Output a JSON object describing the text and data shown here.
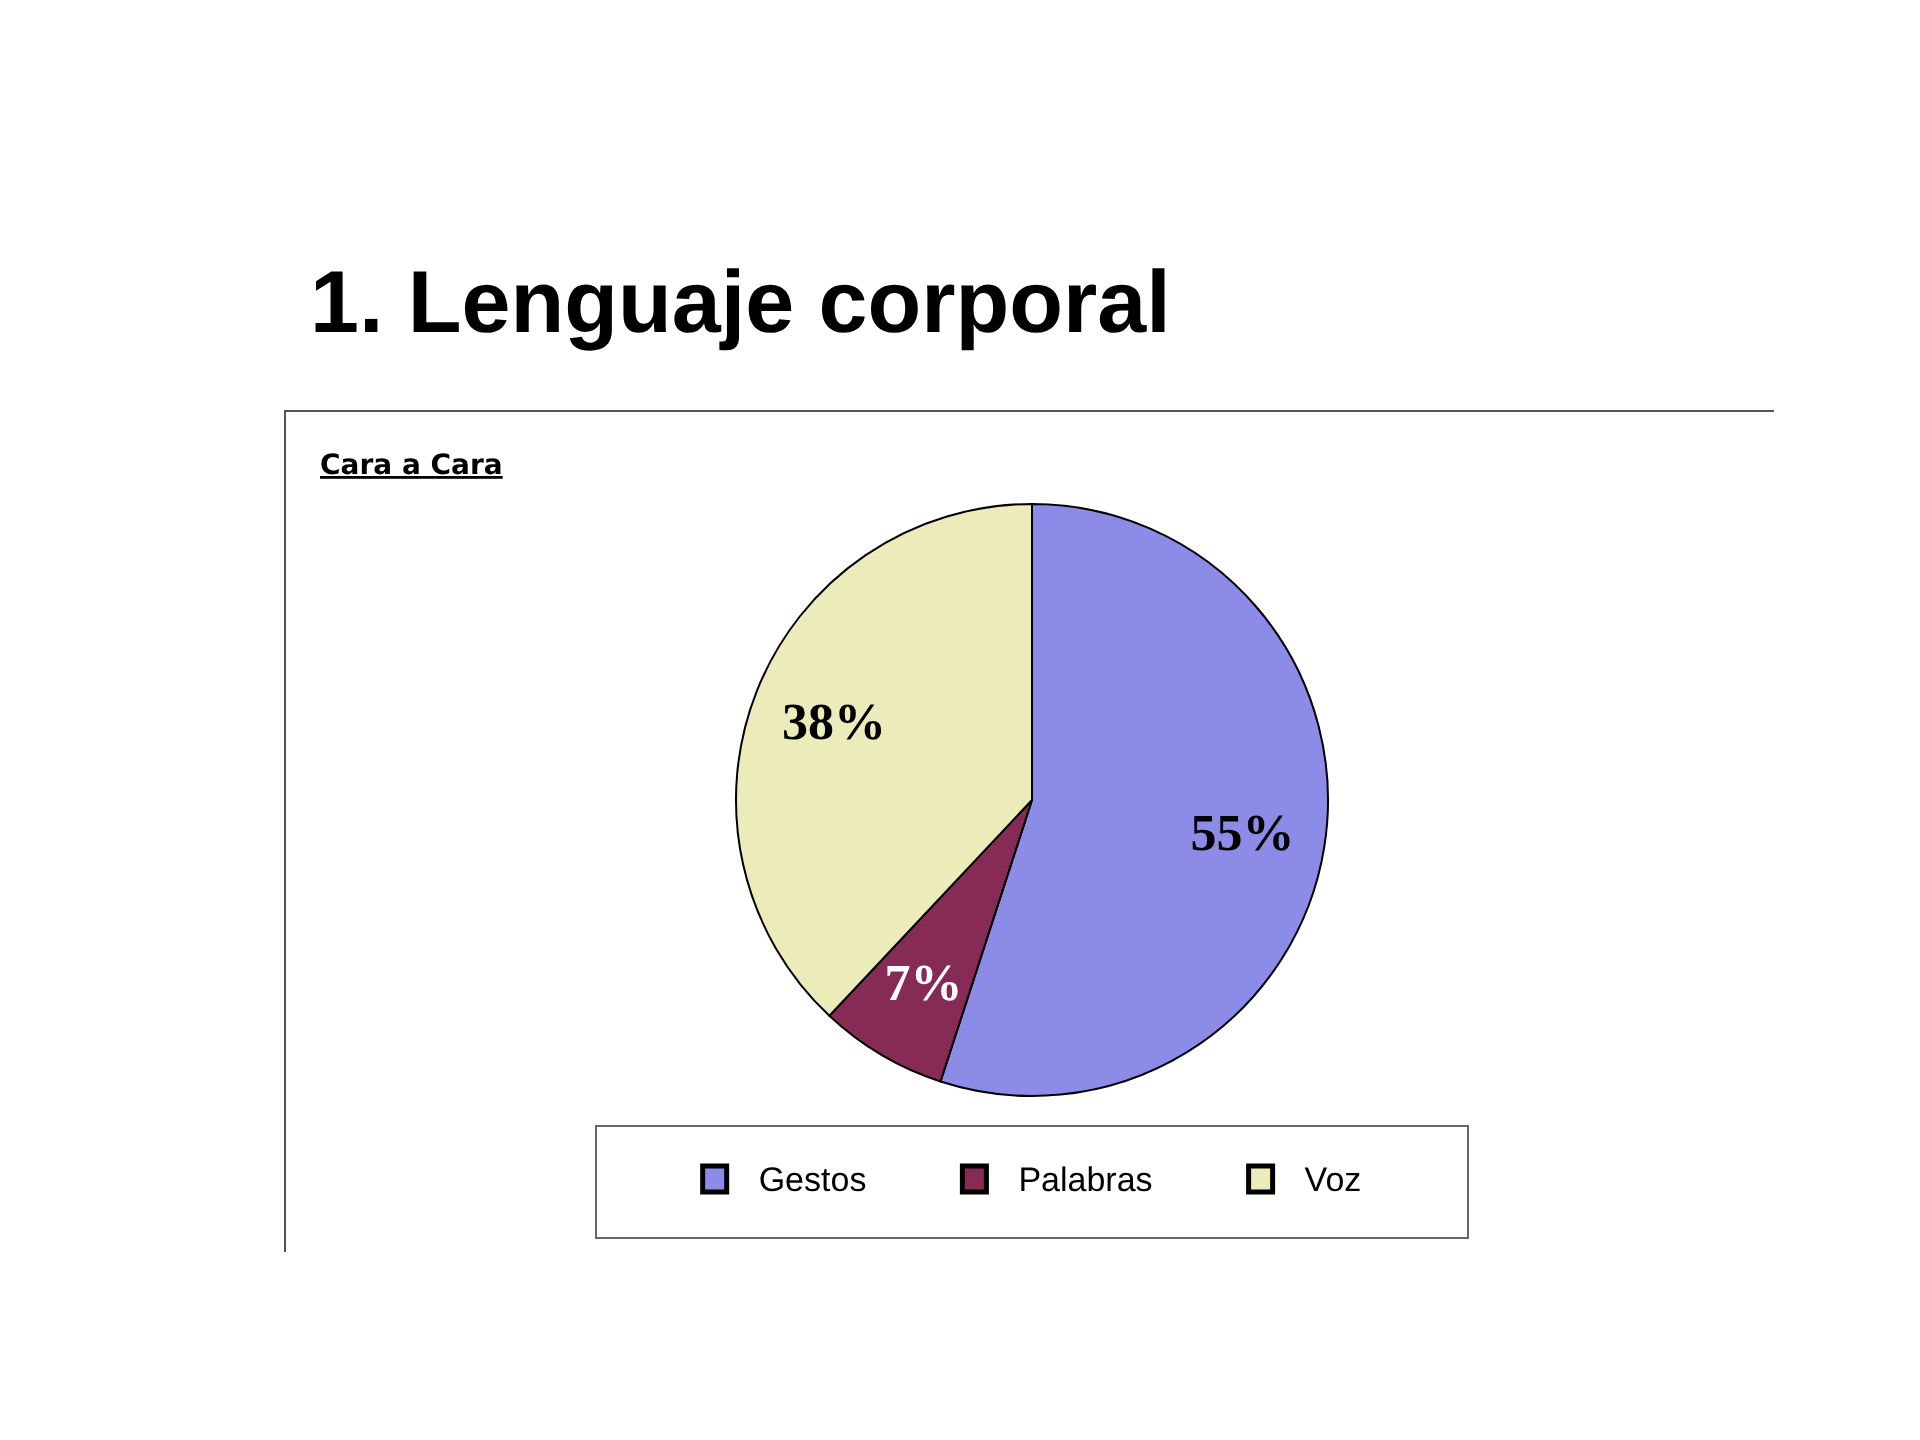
{
  "chart_data": {
    "type": "pie",
    "title": "1. Lenguaje corporal",
    "subtitle": "Cara a Cara",
    "categories": [
      "Gestos",
      "Palabras",
      "Voz"
    ],
    "values": [
      55,
      7,
      38
    ],
    "colors": [
      "#8c8ce8",
      "#862a56",
      "#ececbb"
    ],
    "value_labels": [
      "55%",
      "7%",
      "38%"
    ],
    "legend": "bottom"
  }
}
